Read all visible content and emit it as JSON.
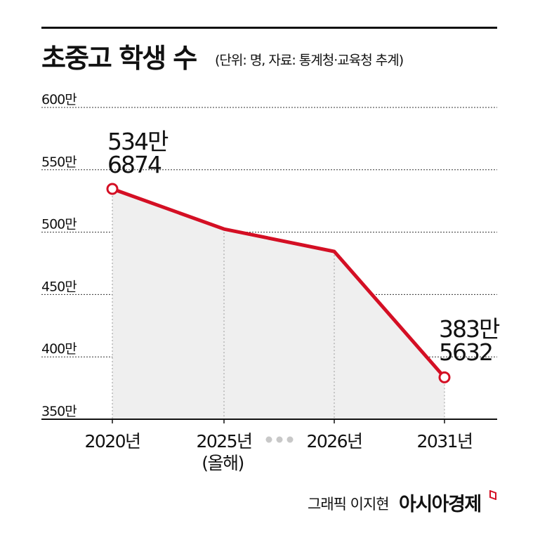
{
  "title": "초중고 학생 수",
  "subtitle": "(단위: 명, 자료: 통계청·교육청 추계)",
  "credit": "그래픽 이지현",
  "brand": "아시아경제",
  "colors": {
    "line": "#d40f24",
    "area": "#efefef",
    "grid": "#333333",
    "marker_fill": "#ffffff"
  },
  "chart_data": {
    "type": "line",
    "title": "초중고 학생 수",
    "unit": "(단위: 명, 자료: 통계청·교육청 추계)",
    "categories": [
      "2020년",
      "2025년",
      "2026년",
      "2031년"
    ],
    "category_sublabels": [
      "",
      "(올해)",
      "",
      ""
    ],
    "axis_break_between": [
      "2025년",
      "2026년"
    ],
    "values": [
      5346874,
      5025000,
      4845000,
      3835632
    ],
    "y_tick_values": [
      3500000,
      4000000,
      4500000,
      5000000,
      5500000,
      6000000
    ],
    "y_tick_labels": [
      "350만",
      "400만",
      "450만",
      "500만",
      "550만",
      "600만"
    ],
    "ylim": [
      3500000,
      6000000
    ],
    "grid": true,
    "grid_style": "dotted",
    "area_fill": true,
    "annotations": [
      {
        "category": "2020년",
        "lines": [
          "534만",
          "6874"
        ]
      },
      {
        "category": "2031년",
        "lines": [
          "383만",
          "5632"
        ]
      }
    ]
  }
}
